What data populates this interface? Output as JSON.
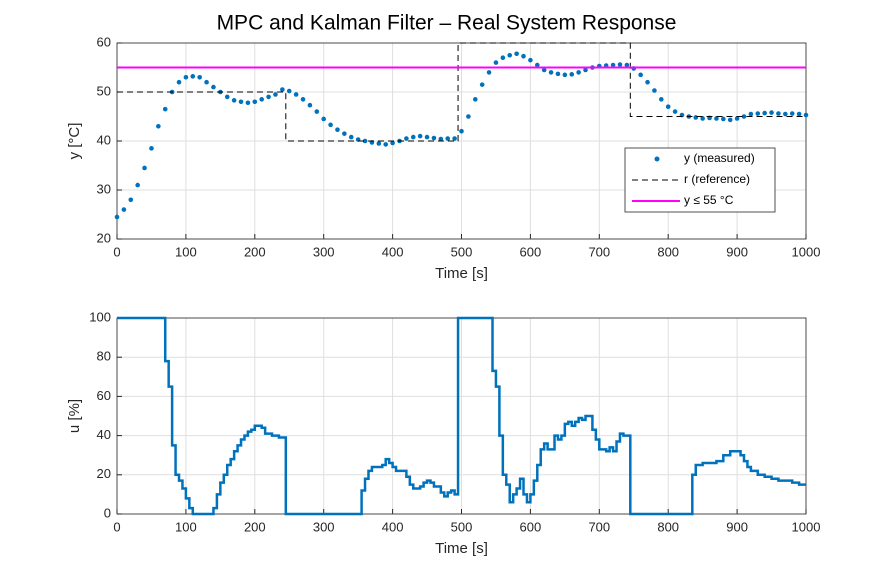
{
  "chart_data": [
    {
      "type": "line",
      "title": "MPC and Kalman Filter – Real System Response",
      "xlabel": "Time [s]",
      "ylabel": "y [°C]",
      "xlim": [
        0,
        1000
      ],
      "xticks": [
        0,
        100,
        200,
        300,
        400,
        500,
        600,
        700,
        800,
        900,
        1000
      ],
      "ylim": [
        20,
        60
      ],
      "yticks": [
        20,
        30,
        40,
        50,
        60
      ],
      "grid": true,
      "legend_loc": "east",
      "series": [
        {
          "name": "y (measured)",
          "color": "#0072BD",
          "style": "markers",
          "x": [
            0,
            10,
            20,
            30,
            40,
            50,
            60,
            70,
            80,
            90,
            100,
            110,
            120,
            130,
            140,
            150,
            160,
            170,
            180,
            190,
            200,
            210,
            220,
            230,
            240,
            250,
            260,
            270,
            280,
            290,
            300,
            310,
            320,
            330,
            340,
            350,
            360,
            370,
            380,
            390,
            400,
            410,
            420,
            430,
            440,
            450,
            460,
            470,
            480,
            490,
            500,
            510,
            520,
            530,
            540,
            550,
            560,
            570,
            580,
            590,
            600,
            610,
            620,
            630,
            640,
            650,
            660,
            670,
            680,
            690,
            700,
            710,
            720,
            730,
            740,
            750,
            760,
            770,
            780,
            790,
            800,
            810,
            820,
            830,
            840,
            850,
            860,
            870,
            880,
            890,
            900,
            910,
            920,
            930,
            940,
            950,
            960,
            970,
            980,
            990,
            1000
          ],
          "values": [
            24.5,
            26,
            28,
            31,
            34.5,
            38.5,
            43,
            46.5,
            50,
            52,
            53,
            53.2,
            53,
            52,
            51,
            50,
            49,
            48.3,
            48,
            47.8,
            48,
            48.5,
            49,
            49.5,
            50.5,
            50.2,
            49.5,
            48.5,
            47.3,
            46,
            44.5,
            43.3,
            42.3,
            41.5,
            40.8,
            40.3,
            40,
            39.7,
            39.5,
            39.3,
            39.6,
            40,
            40.5,
            40.8,
            41,
            40.8,
            40.6,
            40.4,
            40.5,
            40.5,
            42,
            45,
            48.5,
            51.5,
            54,
            56,
            57,
            57.5,
            57.8,
            57.3,
            56.5,
            55.5,
            54.5,
            54,
            53.7,
            53.5,
            53.6,
            54,
            54.5,
            55,
            55.3,
            55.4,
            55.5,
            55.6,
            55.5,
            54.8,
            53.5,
            52,
            50.3,
            48.5,
            47,
            46,
            45.3,
            45,
            44.8,
            44.6,
            44.7,
            44.6,
            44.5,
            44.3,
            44.6,
            45,
            45.5,
            45.6,
            45.7,
            45.8,
            45.6,
            45.5,
            45.6,
            45.5,
            45.3
          ]
        },
        {
          "name": "r (reference)",
          "color": "#000000",
          "style": "dashed",
          "x": [
            0,
            245,
            245,
            495,
            495,
            745,
            745,
            1000
          ],
          "values": [
            50,
            50,
            40,
            40,
            60,
            60,
            45,
            45
          ]
        },
        {
          "name": "y ≤ 55 °C",
          "color": "#FF00FF",
          "style": "solid",
          "x": [
            0,
            1000
          ],
          "values": [
            55,
            55
          ]
        }
      ]
    },
    {
      "type": "line",
      "step": "post",
      "xlabel": "Time [s]",
      "ylabel": "u [%]",
      "xlim": [
        0,
        1000
      ],
      "xticks": [
        0,
        100,
        200,
        300,
        400,
        500,
        600,
        700,
        800,
        900,
        1000
      ],
      "ylim": [
        0,
        100
      ],
      "yticks": [
        0,
        20,
        40,
        60,
        80,
        100
      ],
      "grid": true,
      "series": [
        {
          "color": "#0072BD",
          "style": "solid",
          "x": [
            0,
            70,
            75,
            80,
            85,
            90,
            95,
            100,
            105,
            110,
            140,
            145,
            150,
            155,
            160,
            165,
            170,
            175,
            180,
            185,
            190,
            195,
            200,
            210,
            215,
            225,
            235,
            245,
            355,
            360,
            365,
            370,
            380,
            385,
            390,
            395,
            400,
            405,
            415,
            420,
            425,
            430,
            440,
            445,
            450,
            455,
            460,
            470,
            475,
            480,
            485,
            490,
            495,
            545,
            550,
            555,
            560,
            565,
            570,
            575,
            580,
            585,
            590,
            595,
            600,
            605,
            610,
            615,
            620,
            625,
            635,
            640,
            645,
            650,
            655,
            660,
            665,
            670,
            675,
            680,
            690,
            695,
            700,
            710,
            715,
            720,
            725,
            730,
            735,
            745,
            835,
            840,
            850,
            870,
            880,
            890,
            905,
            910,
            915,
            920,
            930,
            940,
            950,
            960,
            970,
            980,
            990,
            1000
          ],
          "values": [
            100,
            78,
            65,
            35,
            20,
            17,
            13,
            8,
            3,
            0,
            3,
            10,
            16,
            20,
            25,
            28,
            32,
            35,
            38,
            40,
            42,
            43,
            45,
            44,
            41,
            40,
            39,
            0,
            12,
            18,
            22,
            24,
            24,
            25,
            28,
            26,
            24,
            22,
            22,
            19,
            15,
            13,
            14,
            16,
            17,
            16,
            14,
            11,
            9,
            11,
            12,
            10,
            100,
            73,
            65,
            40,
            20,
            15,
            6,
            10,
            13,
            18,
            10,
            6,
            10,
            17,
            25,
            33,
            36,
            33,
            40,
            38,
            40,
            46,
            47,
            45,
            47,
            49,
            48,
            50,
            43,
            38,
            33,
            32,
            34,
            32,
            37,
            41,
            40,
            0,
            20,
            25,
            26,
            27,
            30,
            32,
            30,
            27,
            24,
            22,
            20,
            19,
            18,
            17,
            17,
            16,
            15,
            15
          ]
        }
      ]
    }
  ]
}
